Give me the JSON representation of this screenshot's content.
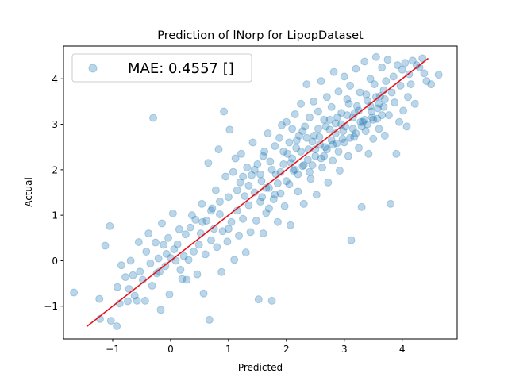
{
  "chart_data": {
    "type": "scatter",
    "title": "Prediction of lNorp for LipopDataset",
    "xlabel": "Predicted",
    "ylabel": "Actual",
    "xlim": [
      -1.85,
      4.95
    ],
    "ylim": [
      -1.72,
      4.72
    ],
    "xticks": [
      -1,
      0,
      1,
      2,
      3,
      4
    ],
    "yticks": [
      -1,
      0,
      1,
      2,
      3,
      4
    ],
    "grid": false,
    "legend": {
      "placement": "top-left",
      "label": "MAE: 0.4557 []"
    },
    "colors": {
      "points": "#1f77b4",
      "fit_line": "#e8141a",
      "axes": "#000000"
    },
    "series": [
      {
        "name": "MAE: 0.4557 []",
        "kind": "scatter",
        "points": [
          [
            -1.67,
            -0.7
          ],
          [
            -1.23,
            -0.84
          ],
          [
            -1.22,
            -1.28
          ],
          [
            -1.13,
            0.33
          ],
          [
            -1.05,
            0.76
          ],
          [
            -1.03,
            -1.32
          ],
          [
            -0.93,
            -1.44
          ],
          [
            -0.92,
            -0.58
          ],
          [
            -0.88,
            -0.94
          ],
          [
            -0.85,
            -0.1
          ],
          [
            -0.78,
            -0.36
          ],
          [
            -0.74,
            -0.89
          ],
          [
            -0.72,
            -0.62
          ],
          [
            -0.69,
            0.0
          ],
          [
            -0.65,
            -0.32
          ],
          [
            -0.62,
            -0.77
          ],
          [
            -0.58,
            -0.88
          ],
          [
            -0.55,
            0.41
          ],
          [
            -0.53,
            -0.24
          ],
          [
            -0.48,
            -0.42
          ],
          [
            -0.44,
            -0.88
          ],
          [
            -0.42,
            0.2
          ],
          [
            -0.38,
            0.6
          ],
          [
            -0.35,
            -0.06
          ],
          [
            -0.32,
            -0.55
          ],
          [
            -0.3,
            3.14
          ],
          [
            -0.26,
            0.4
          ],
          [
            -0.24,
            -0.28
          ],
          [
            -0.21,
            0.05
          ],
          [
            -0.19,
            -0.24
          ],
          [
            -0.17,
            -1.08
          ],
          [
            -0.15,
            0.82
          ],
          [
            -0.12,
            0.35
          ],
          [
            -0.09,
            -0.12
          ],
          [
            -0.07,
            0.15
          ],
          [
            -0.04,
            0.5
          ],
          [
            -0.02,
            -0.74
          ],
          [
            0.0,
            0.06
          ],
          [
            0.04,
            1.04
          ],
          [
            0.06,
            0.25
          ],
          [
            0.09,
            0.0
          ],
          [
            0.12,
            0.36
          ],
          [
            0.15,
            0.69
          ],
          [
            0.17,
            -0.2
          ],
          [
            0.2,
            -0.4
          ],
          [
            0.23,
            0.1
          ],
          [
            0.26,
            0.58
          ],
          [
            0.28,
            -0.42
          ],
          [
            0.31,
            0.02
          ],
          [
            0.34,
            0.73
          ],
          [
            0.37,
            1.0
          ],
          [
            0.4,
            0.2
          ],
          [
            0.43,
            0.9
          ],
          [
            0.46,
            -0.3
          ],
          [
            0.49,
            0.35
          ],
          [
            0.52,
            0.6
          ],
          [
            0.54,
            1.25
          ],
          [
            0.57,
            -0.72
          ],
          [
            0.6,
            0.14
          ],
          [
            0.62,
            0.88
          ],
          [
            0.65,
            2.15
          ],
          [
            0.67,
            -1.3
          ],
          [
            0.7,
            0.45
          ],
          [
            0.72,
            1.15
          ],
          [
            0.75,
            0.7
          ],
          [
            0.78,
            1.55
          ],
          [
            0.8,
            0.3
          ],
          [
            0.83,
            2.45
          ],
          [
            0.85,
            1.02
          ],
          [
            0.88,
            -0.25
          ],
          [
            0.9,
            0.65
          ],
          [
            0.92,
            3.28
          ],
          [
            0.95,
            1.85
          ],
          [
            0.98,
            0.42
          ],
          [
            1.0,
            1.4
          ],
          [
            1.02,
            2.88
          ],
          [
            1.05,
            0.85
          ],
          [
            1.08,
            1.95
          ],
          [
            1.1,
            0.02
          ],
          [
            1.12,
            2.25
          ],
          [
            1.15,
            1.1
          ],
          [
            1.18,
            0.55
          ],
          [
            1.2,
            1.72
          ],
          [
            1.22,
            2.35
          ],
          [
            1.25,
            0.92
          ],
          [
            1.28,
            1.42
          ],
          [
            1.3,
            0.18
          ],
          [
            1.32,
            2.05
          ],
          [
            1.35,
            1.22
          ],
          [
            1.38,
            0.63
          ],
          [
            1.4,
            1.88
          ],
          [
            1.42,
            2.6
          ],
          [
            1.45,
            1.5
          ],
          [
            1.48,
            0.88
          ],
          [
            1.5,
            2.12
          ],
          [
            1.52,
            -0.85
          ],
          [
            1.55,
            1.3
          ],
          [
            1.57,
            1.75
          ],
          [
            1.6,
            0.6
          ],
          [
            1.62,
            2.4
          ],
          [
            1.65,
            1.05
          ],
          [
            1.68,
            2.8
          ],
          [
            1.7,
            1.6
          ],
          [
            1.72,
            2.18
          ],
          [
            1.75,
            -0.88
          ],
          [
            1.78,
            1.35
          ],
          [
            1.8,
            2.52
          ],
          [
            1.82,
            1.9
          ],
          [
            1.85,
            0.85
          ],
          [
            1.88,
            2.7
          ],
          [
            1.9,
            1.48
          ],
          [
            1.92,
            2.98
          ],
          [
            1.95,
            2.12
          ],
          [
            1.97,
            1.2
          ],
          [
            2.0,
            3.05
          ],
          [
            2.02,
            2.35
          ],
          [
            2.05,
            1.68
          ],
          [
            2.07,
            0.78
          ],
          [
            2.1,
            2.9
          ],
          [
            2.12,
            1.98
          ],
          [
            2.15,
            3.22
          ],
          [
            2.17,
            2.48
          ],
          [
            2.2,
            1.52
          ],
          [
            2.22,
            2.75
          ],
          [
            2.25,
            3.45
          ],
          [
            2.28,
            2.08
          ],
          [
            2.3,
            1.25
          ],
          [
            2.32,
            2.95
          ],
          [
            2.35,
            3.88
          ],
          [
            2.37,
            2.22
          ],
          [
            2.4,
            3.15
          ],
          [
            2.42,
            1.8
          ],
          [
            2.45,
            2.62
          ],
          [
            2.47,
            3.5
          ],
          [
            2.5,
            2.3
          ],
          [
            2.52,
            1.45
          ],
          [
            2.55,
            3.28
          ],
          [
            2.57,
            2.72
          ],
          [
            2.6,
            3.95
          ],
          [
            2.62,
            2.05
          ],
          [
            2.65,
            3.1
          ],
          [
            2.67,
            2.5
          ],
          [
            2.7,
            3.6
          ],
          [
            2.72,
            1.72
          ],
          [
            2.75,
            2.88
          ],
          [
            2.78,
            3.38
          ],
          [
            2.8,
            2.2
          ],
          [
            2.82,
            4.15
          ],
          [
            2.85,
            3.02
          ],
          [
            2.87,
            2.58
          ],
          [
            2.9,
            3.72
          ],
          [
            2.92,
            1.98
          ],
          [
            2.95,
            3.25
          ],
          [
            2.97,
            2.68
          ],
          [
            3.0,
            4.05
          ],
          [
            3.02,
            2.95
          ],
          [
            3.05,
            3.55
          ],
          [
            3.07,
            2.3
          ],
          [
            3.1,
            3.85
          ],
          [
            3.12,
            0.45
          ],
          [
            3.15,
            3.15
          ],
          [
            3.17,
            2.72
          ],
          [
            3.2,
            4.22
          ],
          [
            3.22,
            3.4
          ],
          [
            3.25,
            2.48
          ],
          [
            3.27,
            3.7
          ],
          [
            3.3,
            1.18
          ],
          [
            3.32,
            3.05
          ],
          [
            3.35,
            4.38
          ],
          [
            3.37,
            2.85
          ],
          [
            3.4,
            3.52
          ],
          [
            3.42,
            2.35
          ],
          [
            3.45,
            4.0
          ],
          [
            3.47,
            3.28
          ],
          [
            3.5,
            2.68
          ],
          [
            3.52,
            3.88
          ],
          [
            3.55,
            4.48
          ],
          [
            3.57,
            3.12
          ],
          [
            3.6,
            2.9
          ],
          [
            3.62,
            3.62
          ],
          [
            3.65,
            4.25
          ],
          [
            3.68,
            3.38
          ],
          [
            3.7,
            2.75
          ],
          [
            3.72,
            3.95
          ],
          [
            3.75,
            4.42
          ],
          [
            3.77,
            3.2
          ],
          [
            3.8,
            1.25
          ],
          [
            3.82,
            3.7
          ],
          [
            3.85,
            4.05
          ],
          [
            3.87,
            3.48
          ],
          [
            3.9,
            2.35
          ],
          [
            3.92,
            4.3
          ],
          [
            3.95,
            3.05
          ],
          [
            3.97,
            3.85
          ],
          [
            4.0,
            4.2
          ],
          [
            4.02,
            3.3
          ],
          [
            4.05,
            4.35
          ],
          [
            4.08,
            2.95
          ],
          [
            4.1,
            3.6
          ],
          [
            4.12,
            4.1
          ],
          [
            4.15,
            3.88
          ],
          [
            4.18,
            4.4
          ],
          [
            4.22,
            3.45
          ],
          [
            4.25,
            4.3
          ],
          [
            4.3,
            4.25
          ],
          [
            4.35,
            4.45
          ],
          [
            4.38,
            4.12
          ],
          [
            4.42,
            3.95
          ],
          [
            4.5,
            3.88
          ],
          [
            4.63,
            4.09
          ],
          [
            1.6,
            2.3
          ],
          [
            1.75,
            2.0
          ],
          [
            1.85,
            1.7
          ],
          [
            2.05,
            2.6
          ],
          [
            2.15,
            2.0
          ],
          [
            2.25,
            2.4
          ],
          [
            2.35,
            2.7
          ],
          [
            2.45,
            2.1
          ],
          [
            2.55,
            2.9
          ],
          [
            2.65,
            2.3
          ],
          [
            2.75,
            3.1
          ],
          [
            2.85,
            2.8
          ],
          [
            2.95,
            3.0
          ],
          [
            3.05,
            3.2
          ],
          [
            3.15,
            2.9
          ],
          [
            3.25,
            3.3
          ],
          [
            3.35,
            3.1
          ],
          [
            3.45,
            3.4
          ],
          [
            3.55,
            3.6
          ],
          [
            3.65,
            3.2
          ],
          [
            1.55,
            1.9
          ],
          [
            1.65,
            1.6
          ],
          [
            1.95,
            2.4
          ],
          [
            2.08,
            2.15
          ],
          [
            2.18,
            2.65
          ],
          [
            2.28,
            2.85
          ],
          [
            2.38,
            2.45
          ],
          [
            2.48,
            2.75
          ],
          [
            2.58,
            2.55
          ],
          [
            2.68,
            2.95
          ],
          [
            2.78,
            2.65
          ],
          [
            2.88,
            3.15
          ],
          [
            2.98,
            2.85
          ],
          [
            3.08,
            3.45
          ],
          [
            3.18,
            3.25
          ],
          [
            3.28,
            3.05
          ],
          [
            3.38,
            3.65
          ],
          [
            3.48,
            3.15
          ],
          [
            3.58,
            3.35
          ],
          [
            3.68,
            3.75
          ],
          [
            0.55,
            0.85
          ],
          [
            0.7,
            1.1
          ],
          [
            0.85,
            1.3
          ],
          [
            1.0,
            0.7
          ],
          [
            1.15,
            1.55
          ],
          [
            1.25,
            1.85
          ],
          [
            1.35,
            1.65
          ],
          [
            1.45,
            2.0
          ],
          [
            1.58,
            1.4
          ],
          [
            1.7,
            1.15
          ],
          [
            1.8,
            1.45
          ],
          [
            1.9,
            1.95
          ],
          [
            2.0,
            1.75
          ],
          [
            2.1,
            2.25
          ],
          [
            2.2,
            1.9
          ],
          [
            2.3,
            2.1
          ],
          [
            2.4,
            1.95
          ],
          [
            2.5,
            2.45
          ],
          [
            2.6,
            2.25
          ],
          [
            2.7,
            2.45
          ],
          [
            2.8,
            2.55
          ],
          [
            2.9,
            2.4
          ],
          [
            3.0,
            2.6
          ],
          [
            3.1,
            2.7
          ],
          [
            3.2,
            2.8
          ],
          [
            3.3,
            2.95
          ],
          [
            3.4,
            3.0
          ],
          [
            3.5,
            3.1
          ],
          [
            3.6,
            3.45
          ],
          [
            3.7,
            3.55
          ]
        ]
      },
      {
        "name": "",
        "kind": "line",
        "points": [
          [
            -1.45,
            -1.45
          ],
          [
            4.45,
            4.45
          ]
        ]
      }
    ]
  }
}
